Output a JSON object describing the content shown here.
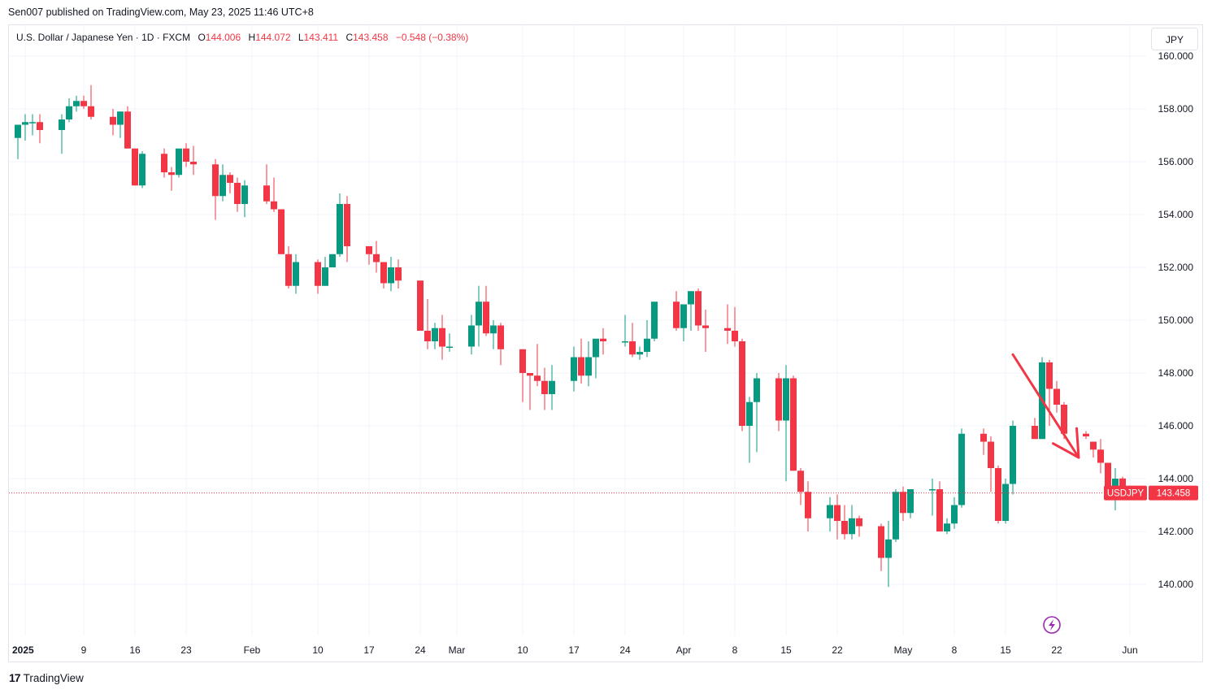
{
  "publisher_line": "Sen007 published on TradingView.com, May 23, 2025 11:46 UTC+8",
  "legend": {
    "symbol": "U.S. Dollar / Japanese Yen · 1D · FXCM",
    "open_label": "O",
    "open": "144.006",
    "high_label": "H",
    "high": "144.072",
    "low_label": "L",
    "low": "143.411",
    "close_label": "C",
    "close": "143.458",
    "change": "−0.548 (−0.38%)"
  },
  "currency_button": "JPY",
  "price_tag": {
    "symbol": "USDJPY",
    "price": "143.458",
    "color": "#f23645"
  },
  "brand": {
    "logo": "17",
    "name": "TradingView"
  },
  "colors": {
    "up": "#089981",
    "down": "#f23645",
    "grid": "#f0f3fa",
    "arrow": "#f23645"
  },
  "icons": {
    "lightning": "lightning-icon"
  },
  "chart_data": {
    "type": "candlestick",
    "symbol": "USDJPY",
    "interval": "1D",
    "y_ticks": [
      140,
      142,
      144,
      146,
      148,
      150,
      152,
      154,
      156,
      158,
      160
    ],
    "y_tick_labels": [
      "140.000",
      "142.000",
      "144.000",
      "146.000",
      "148.000",
      "150.000",
      "152.000",
      "154.000",
      "156.000",
      "158.000",
      "160.000"
    ],
    "ylim": [
      138.3,
      160.2
    ],
    "x_ticks": [
      {
        "date": "2025-01-01",
        "label": "2025"
      },
      {
        "date": "2025-01-09",
        "label": "9"
      },
      {
        "date": "2025-01-16",
        "label": "16"
      },
      {
        "date": "2025-01-23",
        "label": "23"
      },
      {
        "date": "2025-02-01",
        "label": "Feb"
      },
      {
        "date": "2025-02-10",
        "label": "10"
      },
      {
        "date": "2025-02-17",
        "label": "17"
      },
      {
        "date": "2025-02-24",
        "label": "24"
      },
      {
        "date": "2025-03-01",
        "label": "Mar"
      },
      {
        "date": "2025-03-10",
        "label": "10"
      },
      {
        "date": "2025-03-17",
        "label": "17"
      },
      {
        "date": "2025-03-24",
        "label": "24"
      },
      {
        "date": "2025-04-01",
        "label": "Apr"
      },
      {
        "date": "2025-04-08",
        "label": "8"
      },
      {
        "date": "2025-04-15",
        "label": "15"
      },
      {
        "date": "2025-04-22",
        "label": "22"
      },
      {
        "date": "2025-05-01",
        "label": "May"
      },
      {
        "date": "2025-05-08",
        "label": "8"
      },
      {
        "date": "2025-05-15",
        "label": "15"
      },
      {
        "date": "2025-05-22",
        "label": "22"
      },
      {
        "date": "2025-06-01",
        "label": "Jun"
      }
    ],
    "last_price": 143.458,
    "annotation": {
      "type": "arrow",
      "from": [
        "2025-05-16",
        148.7
      ],
      "to": [
        "2025-05-25",
        144.8
      ]
    },
    "candles": [
      [
        "2024-12-31",
        156.9,
        157.4,
        156.1,
        157.4
      ],
      [
        "2025-01-01",
        157.4,
        157.8,
        156.8,
        157.5
      ],
      [
        "2025-01-02",
        157.5,
        157.8,
        157.0,
        157.5
      ],
      [
        "2025-01-03",
        157.5,
        157.8,
        156.7,
        157.2
      ],
      [
        "2025-01-06",
        157.2,
        157.8,
        156.3,
        157.6
      ],
      [
        "2025-01-07",
        157.6,
        158.4,
        157.5,
        158.1
      ],
      [
        "2025-01-08",
        158.1,
        158.5,
        157.9,
        158.3
      ],
      [
        "2025-01-09",
        158.3,
        158.5,
        158.0,
        158.1
      ],
      [
        "2025-01-10",
        158.1,
        158.9,
        157.6,
        157.7
      ],
      [
        "2025-01-13",
        157.7,
        158.0,
        157.0,
        157.4
      ],
      [
        "2025-01-14",
        157.4,
        157.9,
        156.9,
        157.9
      ],
      [
        "2025-01-15",
        157.9,
        158.1,
        156.5,
        156.5
      ],
      [
        "2025-01-16",
        156.5,
        156.5,
        155.1,
        155.1
      ],
      [
        "2025-01-17",
        155.1,
        156.4,
        155.0,
        156.3
      ],
      [
        "2025-01-20",
        156.3,
        156.5,
        155.4,
        155.6
      ],
      [
        "2025-01-21",
        155.6,
        155.8,
        154.9,
        155.5
      ],
      [
        "2025-01-22",
        155.5,
        156.4,
        155.4,
        156.5
      ],
      [
        "2025-01-23",
        156.5,
        156.7,
        155.8,
        156.0
      ],
      [
        "2025-01-24",
        156.0,
        156.6,
        155.5,
        155.9
      ],
      [
        "2025-01-27",
        155.9,
        156.1,
        153.8,
        154.7
      ],
      [
        "2025-01-28",
        154.7,
        155.9,
        154.5,
        155.5
      ],
      [
        "2025-01-29",
        155.5,
        155.6,
        154.8,
        155.2
      ],
      [
        "2025-01-30",
        155.2,
        155.4,
        154.1,
        154.4
      ],
      [
        "2025-01-31",
        154.4,
        155.3,
        153.9,
        155.1
      ],
      [
        "2025-02-03",
        155.1,
        155.9,
        154.4,
        154.5
      ],
      [
        "2025-02-04",
        154.5,
        155.4,
        154.1,
        154.2
      ],
      [
        "2025-02-05",
        154.2,
        154.2,
        152.5,
        152.5
      ],
      [
        "2025-02-06",
        152.5,
        152.8,
        151.2,
        151.3
      ],
      [
        "2025-02-07",
        151.3,
        152.5,
        151.0,
        152.2
      ],
      [
        "2025-02-10",
        152.2,
        152.3,
        151.0,
        151.3
      ],
      [
        "2025-02-11",
        151.3,
        152.4,
        151.3,
        152.0
      ],
      [
        "2025-02-12",
        152.0,
        152.5,
        152.0,
        152.5
      ],
      [
        "2025-02-13",
        152.5,
        154.8,
        152.4,
        154.4
      ],
      [
        "2025-02-14",
        154.4,
        154.7,
        152.2,
        152.8
      ],
      [
        "2025-02-17",
        152.8,
        152.8,
        152.1,
        152.5
      ],
      [
        "2025-02-18",
        152.5,
        153.0,
        151.8,
        152.2
      ],
      [
        "2025-02-19",
        152.2,
        152.2,
        151.2,
        151.4
      ],
      [
        "2025-02-20",
        151.4,
        152.4,
        151.1,
        152.0
      ],
      [
        "2025-02-21",
        152.0,
        152.3,
        151.2,
        151.5
      ],
      [
        "2025-02-24",
        151.5,
        151.5,
        149.6,
        149.6
      ],
      [
        "2025-02-25",
        149.6,
        150.8,
        148.9,
        149.2
      ],
      [
        "2025-02-26",
        149.2,
        149.9,
        148.9,
        149.7
      ],
      [
        "2025-02-27",
        149.7,
        150.2,
        148.5,
        149.0
      ],
      [
        "2025-02-28",
        149.0,
        149.5,
        148.8,
        149.0
      ],
      [
        "2025-03-03",
        149.0,
        150.2,
        148.7,
        149.8
      ],
      [
        "2025-03-04",
        149.8,
        151.3,
        149.0,
        150.7
      ],
      [
        "2025-03-05",
        150.7,
        151.3,
        149.4,
        149.5
      ],
      [
        "2025-03-06",
        149.5,
        150.0,
        148.9,
        149.8
      ],
      [
        "2025-03-07",
        149.8,
        149.9,
        148.3,
        148.9
      ],
      [
        "2025-03-10",
        148.9,
        148.9,
        146.9,
        148.0
      ],
      [
        "2025-03-11",
        148.0,
        148.0,
        146.6,
        147.9
      ],
      [
        "2025-03-12",
        147.9,
        149.1,
        147.5,
        147.7
      ],
      [
        "2025-03-13",
        147.7,
        148.2,
        146.6,
        147.2
      ],
      [
        "2025-03-14",
        147.2,
        148.3,
        146.6,
        147.7
      ],
      [
        "2025-03-17",
        147.7,
        149.0,
        147.3,
        148.6
      ],
      [
        "2025-03-18",
        148.6,
        149.3,
        147.6,
        147.9
      ],
      [
        "2025-03-19",
        147.9,
        149.2,
        147.5,
        148.6
      ],
      [
        "2025-03-20",
        148.6,
        149.1,
        147.8,
        149.3
      ],
      [
        "2025-03-21",
        149.3,
        149.7,
        148.7,
        149.2
      ],
      [
        "2025-03-24",
        149.2,
        150.2,
        149.0,
        149.2
      ],
      [
        "2025-03-25",
        149.2,
        149.9,
        148.6,
        148.7
      ],
      [
        "2025-03-26",
        148.7,
        149.0,
        148.5,
        148.8
      ],
      [
        "2025-03-27",
        148.8,
        150.0,
        148.6,
        149.3
      ],
      [
        "2025-03-28",
        149.3,
        150.7,
        149.2,
        150.7
      ],
      [
        "2025-03-31",
        150.7,
        151.1,
        149.6,
        149.7
      ],
      [
        "2025-04-01",
        149.7,
        150.6,
        149.2,
        150.6
      ],
      [
        "2025-04-02",
        150.6,
        151.1,
        149.6,
        151.1
      ],
      [
        "2025-04-03",
        151.1,
        151.2,
        149.6,
        149.8
      ],
      [
        "2025-04-04",
        149.8,
        150.4,
        148.8,
        149.7
      ],
      [
        "2025-04-07",
        149.7,
        150.6,
        149.1,
        149.6
      ],
      [
        "2025-04-08",
        149.6,
        150.5,
        149.0,
        149.2
      ],
      [
        "2025-04-09",
        149.2,
        149.3,
        145.8,
        146.0
      ],
      [
        "2025-04-10",
        146.0,
        147.1,
        144.6,
        146.9
      ],
      [
        "2025-04-11",
        146.9,
        148.0,
        145.0,
        147.8
      ],
      [
        "2025-04-14",
        147.8,
        148.0,
        145.8,
        146.2
      ],
      [
        "2025-04-15",
        146.2,
        148.3,
        143.9,
        147.8
      ],
      [
        "2025-04-16",
        147.8,
        147.9,
        144.3,
        144.3
      ],
      [
        "2025-04-17",
        144.3,
        144.4,
        143.0,
        143.5
      ],
      [
        "2025-04-18",
        143.5,
        143.9,
        142.0,
        142.5
      ],
      [
        "2025-04-21",
        142.5,
        143.3,
        142.0,
        143.0
      ],
      [
        "2025-04-22",
        143.0,
        143.4,
        141.7,
        142.4
      ],
      [
        "2025-04-23",
        142.4,
        143.0,
        141.7,
        141.9
      ],
      [
        "2025-04-24",
        141.9,
        143.0,
        141.7,
        142.5
      ],
      [
        "2025-04-25",
        142.5,
        142.6,
        141.8,
        142.2
      ],
      [
        "2025-04-28",
        142.2,
        142.3,
        140.5,
        141.0
      ],
      [
        "2025-04-29",
        141.0,
        142.4,
        139.9,
        141.7
      ],
      [
        "2025-04-30",
        141.7,
        143.6,
        141.6,
        143.5
      ],
      [
        "2025-05-01",
        143.5,
        143.7,
        142.4,
        142.7
      ],
      [
        "2025-05-02",
        142.7,
        143.6,
        142.5,
        143.6
      ],
      [
        "2025-05-05",
        143.6,
        144.0,
        142.6,
        143.6
      ],
      [
        "2025-05-06",
        143.6,
        143.9,
        142.0,
        142.0
      ],
      [
        "2025-05-07",
        142.0,
        142.5,
        141.9,
        142.3
      ],
      [
        "2025-05-08",
        142.3,
        143.3,
        142.1,
        143.0
      ],
      [
        "2025-05-09",
        143.0,
        145.9,
        142.9,
        145.7
      ],
      [
        "2025-05-12",
        145.7,
        145.9,
        144.9,
        145.4
      ],
      [
        "2025-05-13",
        145.4,
        145.6,
        143.5,
        144.4
      ],
      [
        "2025-05-14",
        144.4,
        144.5,
        142.3,
        142.4
      ],
      [
        "2025-05-15",
        142.4,
        144.0,
        142.3,
        143.8
      ],
      [
        "2025-05-16",
        143.8,
        146.2,
        143.4,
        146.0
      ],
      [
        "2025-05-19",
        146.0,
        146.3,
        145.7,
        145.5
      ],
      [
        "2025-05-20",
        145.5,
        148.6,
        145.6,
        148.4
      ],
      [
        "2025-05-21",
        148.4,
        148.5,
        146.0,
        147.4
      ],
      [
        "2025-05-22",
        147.4,
        147.7,
        146.5,
        146.8
      ],
      [
        "2025-05-23",
        146.8,
        146.9,
        145.5,
        145.7
      ],
      [
        "2025-05-26",
        145.7,
        145.8,
        145.5,
        145.6
      ],
      [
        "2025-05-27",
        145.4,
        145.4,
        144.8,
        145.1
      ],
      [
        "2025-05-28",
        145.1,
        145.5,
        144.2,
        144.6
      ],
      [
        "2025-05-29",
        144.6,
        144.6,
        143.3,
        143.7
      ],
      [
        "2025-05-30",
        143.7,
        144.4,
        142.8,
        144.0
      ],
      [
        "2025-05-31",
        144.006,
        144.072,
        143.411,
        143.458
      ]
    ]
  }
}
